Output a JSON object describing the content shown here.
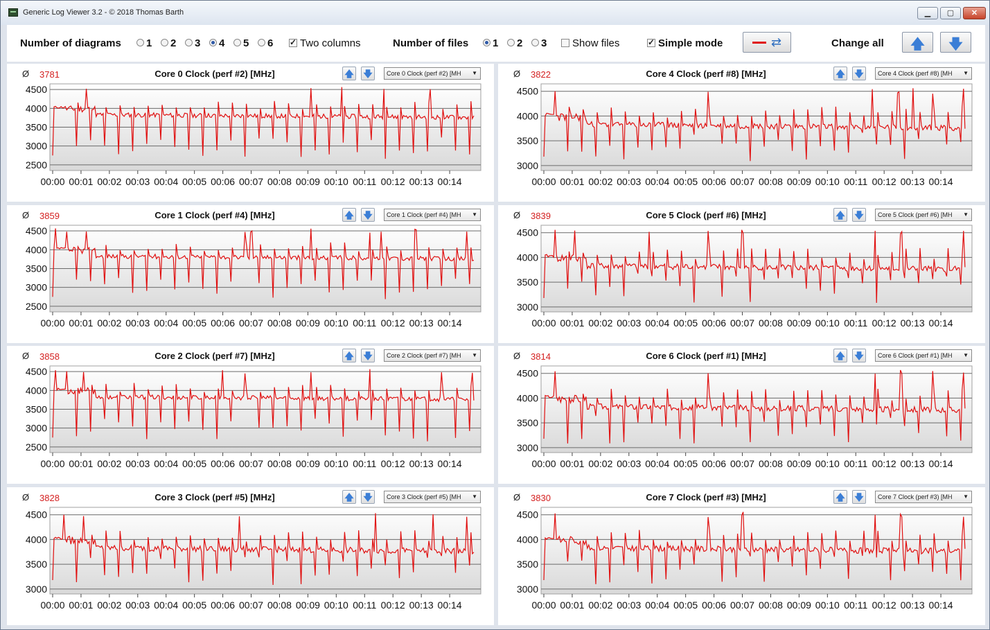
{
  "window": {
    "title": "Generic Log Viewer 3.2 - © 2018 Thomas Barth"
  },
  "toolbar": {
    "num_diagrams_label": "Number of diagrams",
    "diagram_options": [
      "1",
      "2",
      "3",
      "4",
      "5",
      "6"
    ],
    "diagram_selected": "4",
    "two_columns_label": "Two columns",
    "two_columns_checked": true,
    "num_files_label": "Number of files",
    "file_options": [
      "1",
      "2",
      "3"
    ],
    "file_selected": "1",
    "show_files_label": "Show files",
    "show_files_checked": false,
    "simple_mode_label": "Simple mode",
    "simple_mode_checked": true,
    "change_all_label": "Change all"
  },
  "accent_color": "#e01010",
  "chart_data": [
    {
      "type": "line",
      "title": "Core 0 Clock (perf #2) [MHz]",
      "avg_symbol": "Ø",
      "avg": "3781",
      "selector": "Core 0 Clock (perf #2) [MH",
      "yticks": [
        2500,
        3000,
        3500,
        4000,
        4500
      ],
      "ylim": [
        2350,
        4650
      ],
      "xticks": [
        "00:00",
        "00:01",
        "00:02",
        "00:03",
        "00:04",
        "00:05",
        "00:06",
        "00:07",
        "00:08",
        "00:09",
        "00:10",
        "00:11",
        "00:12",
        "00:13",
        "00:14"
      ],
      "xlim": [
        0,
        15
      ],
      "seed": 11,
      "drop_min": 2650,
      "spikes": [
        1.2,
        9.1,
        10.2,
        11.7,
        13.3,
        14.9
      ]
    },
    {
      "type": "line",
      "title": "Core 4 Clock (perf #8) [MHz]",
      "avg_symbol": "Ø",
      "avg": "3822",
      "selector": "Core 4 Clock (perf #8) [MH",
      "yticks": [
        3000,
        3500,
        4000,
        4500
      ],
      "ylim": [
        2900,
        4650
      ],
      "xticks": [
        "00:00",
        "00:01",
        "00:02",
        "00:03",
        "00:04",
        "00:05",
        "00:06",
        "00:07",
        "00:08",
        "00:09",
        "00:10",
        "00:11",
        "00:12",
        "00:13",
        "00:14"
      ],
      "xlim": [
        0,
        15
      ],
      "seed": 23,
      "drop_min": 3080,
      "spikes": [
        0.4,
        5.8,
        11.6,
        12.5,
        13.0,
        13.7,
        14.8
      ]
    },
    {
      "type": "line",
      "title": "Core 1 Clock (perf #4) [MHz]",
      "avg_symbol": "Ø",
      "avg": "3859",
      "selector": "Core 1 Clock (perf #4) [MH",
      "yticks": [
        2500,
        3000,
        3500,
        4000,
        4500
      ],
      "ylim": [
        2350,
        4650
      ],
      "xticks": [
        "00:00",
        "00:01",
        "00:02",
        "00:03",
        "00:04",
        "00:05",
        "00:06",
        "00:07",
        "00:08",
        "00:09",
        "00:10",
        "00:11",
        "00:12",
        "00:13",
        "00:14"
      ],
      "xlim": [
        0,
        15
      ],
      "seed": 37,
      "drop_min": 2650,
      "spikes": [
        0.1,
        0.5,
        1.2,
        6.8,
        7.0,
        9.1,
        11.2,
        11.6,
        12.8,
        14.6
      ]
    },
    {
      "type": "line",
      "title": "Core 5 Clock (perf #6) [MHz]",
      "avg_symbol": "Ø",
      "avg": "3839",
      "selector": "Core 5 Clock (perf #6) [MH",
      "yticks": [
        3000,
        3500,
        4000,
        4500
      ],
      "ylim": [
        2900,
        4650
      ],
      "xticks": [
        "00:00",
        "00:01",
        "00:02",
        "00:03",
        "00:04",
        "00:05",
        "00:06",
        "00:07",
        "00:08",
        "00:09",
        "00:10",
        "00:11",
        "00:12",
        "00:13",
        "00:14"
      ],
      "xlim": [
        0,
        15
      ],
      "seed": 41,
      "drop_min": 3080,
      "spikes": [
        0.4,
        1.1,
        3.7,
        5.8,
        7.0,
        11.7,
        12.6,
        14.8
      ]
    },
    {
      "type": "line",
      "title": "Core 2 Clock (perf #7) [MHz]",
      "avg_symbol": "Ø",
      "avg": "3858",
      "selector": "Core 2 Clock (perf #7) [MH",
      "yticks": [
        2500,
        3000,
        3500,
        4000,
        4500
      ],
      "ylim": [
        2350,
        4650
      ],
      "xticks": [
        "00:00",
        "00:01",
        "00:02",
        "00:03",
        "00:04",
        "00:05",
        "00:06",
        "00:07",
        "00:08",
        "00:09",
        "00:10",
        "00:11",
        "00:12",
        "00:13",
        "00:14"
      ],
      "xlim": [
        0,
        15
      ],
      "seed": 53,
      "drop_min": 2650,
      "spikes": [
        0.1,
        0.5,
        1.1,
        6.0,
        6.8,
        9.1,
        11.2,
        13.7,
        14.8
      ]
    },
    {
      "type": "line",
      "title": "Core 6 Clock (perf #1) [MHz]",
      "avg_symbol": "Ø",
      "avg": "3814",
      "selector": "Core 6 Clock (perf #1) [MH",
      "yticks": [
        3000,
        3500,
        4000,
        4500
      ],
      "ylim": [
        2900,
        4650
      ],
      "xticks": [
        "00:00",
        "00:01",
        "00:02",
        "00:03",
        "00:04",
        "00:05",
        "00:06",
        "00:07",
        "00:08",
        "00:09",
        "00:10",
        "00:11",
        "00:12",
        "00:13",
        "00:14"
      ],
      "xlim": [
        0,
        15
      ],
      "seed": 67,
      "drop_min": 3080,
      "spikes": [
        0.4,
        5.8,
        11.7,
        12.6,
        13.7,
        14.8
      ]
    },
    {
      "type": "line",
      "title": "Core 3 Clock (perf #5) [MHz]",
      "avg_symbol": "Ø",
      "avg": "3828",
      "selector": "Core 3 Clock (perf #5) [MH",
      "yticks": [
        3000,
        3500,
        4000,
        4500
      ],
      "ylim": [
        2900,
        4650
      ],
      "xticks": [
        "00:00",
        "00:01",
        "00:02",
        "00:03",
        "00:04",
        "00:05",
        "00:06",
        "00:07",
        "00:08",
        "00:09",
        "00:10",
        "00:11",
        "00:12",
        "00:13",
        "00:14"
      ],
      "xlim": [
        0,
        15
      ],
      "seed": 79,
      "drop_min": 3080,
      "spikes": [
        0.4,
        1.1,
        6.6,
        11.4,
        13.4,
        14.6
      ]
    },
    {
      "type": "line",
      "title": "Core 7 Clock (perf #3) [MHz]",
      "avg_symbol": "Ø",
      "avg": "3830",
      "selector": "Core 7 Clock (perf #3) [MH",
      "yticks": [
        3000,
        3500,
        4000,
        4500
      ],
      "ylim": [
        2900,
        4650
      ],
      "xticks": [
        "00:00",
        "00:01",
        "00:02",
        "00:03",
        "00:04",
        "00:05",
        "00:06",
        "00:07",
        "00:08",
        "00:09",
        "00:10",
        "00:11",
        "00:12",
        "00:13",
        "00:14"
      ],
      "xlim": [
        0,
        15
      ],
      "seed": 83,
      "drop_min": 3080,
      "spikes": [
        0.4,
        5.8,
        7.0,
        11.7,
        12.6,
        14.8
      ]
    }
  ]
}
